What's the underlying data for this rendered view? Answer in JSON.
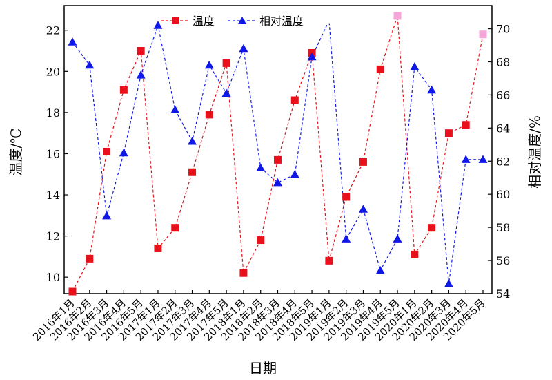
{
  "chart_data": {
    "type": "line",
    "title": "",
    "xlabel": "日期",
    "ylabel_left": "温度/℃",
    "ylabel_right": "相对温度/%",
    "legend_position": "top-center",
    "grid": false,
    "categories": [
      "2016年1月",
      "2016年2月",
      "2016年3月",
      "2016年4月",
      "2016年5月",
      "2017年1月",
      "2017年2月",
      "2017年3月",
      "2017年4月",
      "2017年5月",
      "2018年1月",
      "2018年2月",
      "2018年3月",
      "2018年4月",
      "2018年5月",
      "2019年1月",
      "2019年2月",
      "2019年3月",
      "2019年4月",
      "2019年5月",
      "2020年1月",
      "2020年2月",
      "2020年3月",
      "2020年4月",
      "2020年5月"
    ],
    "left_axis": {
      "ylim": [
        9.2,
        23.2
      ],
      "ticks": [
        10,
        12,
        14,
        16,
        18,
        20,
        22
      ]
    },
    "right_axis": {
      "ylim": [
        54,
        71.4
      ],
      "ticks": [
        54,
        56,
        58,
        60,
        62,
        64,
        66,
        68,
        70
      ]
    },
    "series": [
      {
        "name": "温度",
        "axis": "left",
        "color": "#e8101a",
        "marker": "square",
        "line_style": "dashed",
        "values": [
          9.3,
          10.9,
          16.1,
          19.1,
          21.0,
          11.4,
          12.4,
          15.1,
          17.9,
          20.4,
          10.2,
          11.8,
          15.7,
          18.6,
          20.9,
          10.8,
          13.9,
          15.6,
          20.1,
          22.7,
          11.1,
          12.4,
          17.0,
          17.4,
          21.8
        ]
      },
      {
        "name": "相对温度",
        "axis": "right",
        "color": "#1018e8",
        "marker": "triangle",
        "line_style": "dashed",
        "values": [
          69.2,
          67.8,
          58.7,
          62.5,
          67.2,
          70.2,
          65.1,
          63.2,
          67.8,
          66.1,
          68.8,
          61.6,
          60.7,
          61.2,
          68.3,
          70.5,
          57.3,
          59.1,
          55.4,
          57.3,
          67.7,
          66.3,
          54.6,
          62.1,
          62.1
        ]
      }
    ],
    "highlighted_points": [
      {
        "series": "温度",
        "category": "2019年5月",
        "color": "#f4a6d9"
      },
      {
        "series": "温度",
        "category": "2020年5月",
        "color": "#f4a6d9"
      },
      {
        "series": "相对温度",
        "category": "2019年1月",
        "color": "#ffffff"
      }
    ]
  }
}
